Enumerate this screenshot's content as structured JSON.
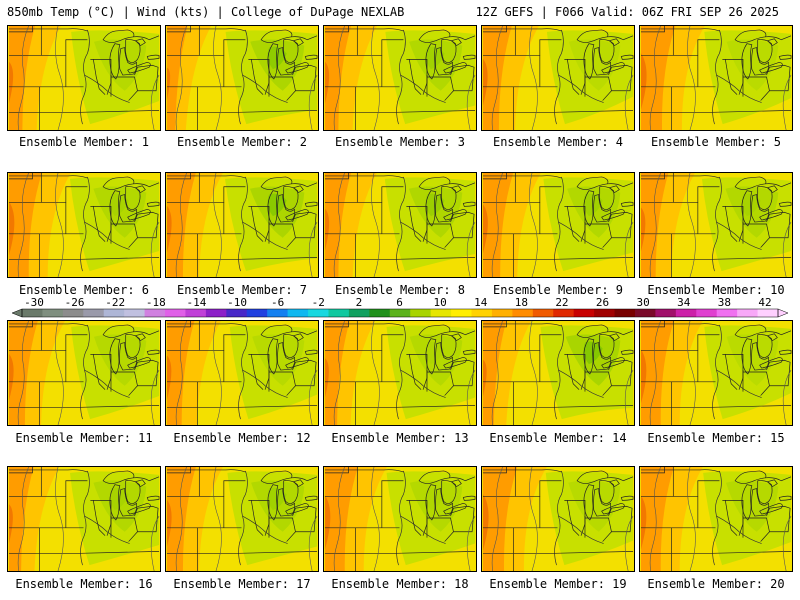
{
  "header": {
    "left": "850mb Temp (°C) | Wind (kts) | College of DuPage NEXLAB",
    "right": "12Z GEFS | F066 Valid: 06Z FRI SEP 26 2025"
  },
  "members": [
    {
      "label": "Ensemble Member: 1",
      "green": 0.55,
      "orange": 0.45
    },
    {
      "label": "Ensemble Member: 2",
      "green": 0.85,
      "orange": 0.25
    },
    {
      "label": "Ensemble Member: 3",
      "green": 0.7,
      "orange": 0.45
    },
    {
      "label": "Ensemble Member: 4",
      "green": 0.4,
      "orange": 0.55
    },
    {
      "label": "Ensemble Member: 5",
      "green": 0.45,
      "orange": 0.75
    },
    {
      "label": "Ensemble Member: 6",
      "green": 0.65,
      "orange": 0.7
    },
    {
      "label": "Ensemble Member: 7",
      "green": 0.9,
      "orange": 0.55
    },
    {
      "label": "Ensemble Member: 8",
      "green": 0.75,
      "orange": 0.45
    },
    {
      "label": "Ensemble Member: 9",
      "green": 0.7,
      "orange": 0.6
    },
    {
      "label": "Ensemble Member: 10",
      "green": 0.65,
      "orange": 0.5
    },
    {
      "label": "Ensemble Member: 11",
      "green": 0.55,
      "orange": 0.55
    },
    {
      "label": "Ensemble Member: 12",
      "green": 0.5,
      "orange": 0.5
    },
    {
      "label": "Ensemble Member: 13",
      "green": 0.6,
      "orange": 0.4
    },
    {
      "label": "Ensemble Member: 14",
      "green": 0.95,
      "orange": 0.35
    },
    {
      "label": "Ensemble Member: 15",
      "green": 0.45,
      "orange": 0.7
    },
    {
      "label": "Ensemble Member: 16",
      "green": 0.65,
      "orange": 0.4
    },
    {
      "label": "Ensemble Member: 17",
      "green": 0.7,
      "orange": 0.55
    },
    {
      "label": "Ensemble Member: 18",
      "green": 0.6,
      "orange": 0.7
    },
    {
      "label": "Ensemble Member: 19",
      "green": 0.5,
      "orange": 0.75
    },
    {
      "label": "Ensemble Member: 20",
      "green": 0.55,
      "orange": 0.7
    }
  ],
  "colorbar": {
    "ticks": [
      "-30",
      "-26",
      "-22",
      "-18",
      "-14",
      "-10",
      "-6",
      "-2",
      "2",
      "6",
      "10",
      "14",
      "18",
      "22",
      "26",
      "30",
      "34",
      "38",
      "42"
    ],
    "colors": [
      "#6a7a6a",
      "#7f8f7f",
      "#8c8c8c",
      "#9a9aaa",
      "#aeb6d6",
      "#c0c0e0",
      "#d080e0",
      "#e060e8",
      "#c040d8",
      "#8c20c8",
      "#4828c8",
      "#2040e0",
      "#1480f0",
      "#10b8f0",
      "#18d8e0",
      "#10c8a0",
      "#10a060",
      "#20901c",
      "#5cb21c",
      "#a8d400",
      "#e6e600",
      "#ffee00",
      "#ffd200",
      "#ffb000",
      "#ff8c00",
      "#f05a00",
      "#e02800",
      "#c80000",
      "#a00000",
      "#780000",
      "#7a0a2a",
      "#a0106a",
      "#cc20a8",
      "#e040d0",
      "#f070f0",
      "#f8a8f8",
      "#ffd0ff"
    ]
  }
}
